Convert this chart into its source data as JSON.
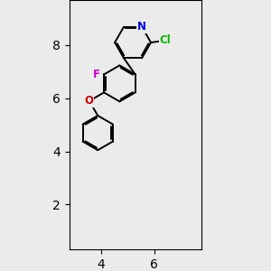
{
  "bg_color": "#ebebeb",
  "bond_color": "#000000",
  "bond_lw": 1.4,
  "atom_colors": {
    "N": "#0000ee",
    "Cl": "#00bb00",
    "F": "#cc00cc",
    "O": "#cc0000"
  },
  "font_size": 8.5,
  "xlim": [
    2.8,
    7.8
  ],
  "ylim": [
    0.3,
    9.7
  ]
}
